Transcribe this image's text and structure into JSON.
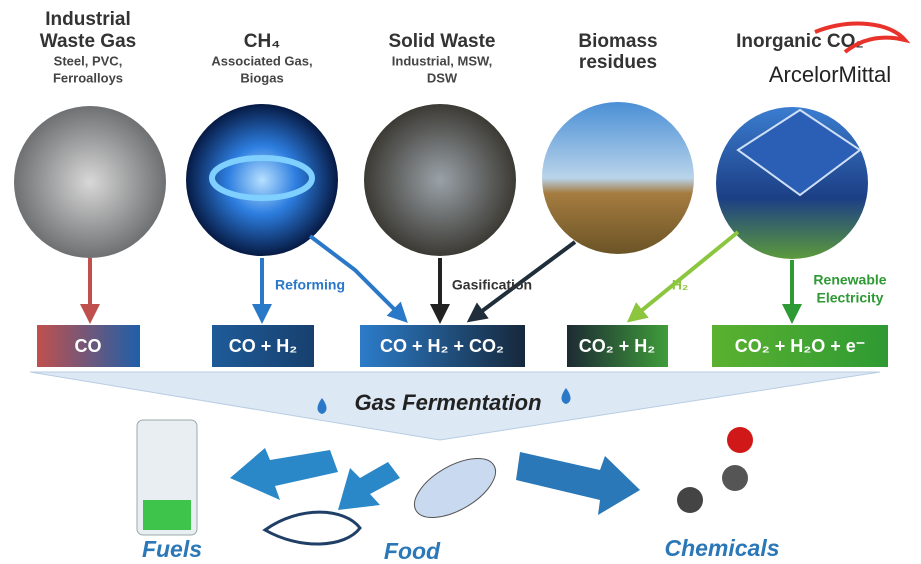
{
  "sources": [
    {
      "title": [
        "Industrial",
        "Waste Gas"
      ],
      "subtitle": [
        "Steel, PVC,",
        "Ferroalloys"
      ]
    },
    {
      "title": [
        "CH₄"
      ],
      "subtitle": [
        "Associated Gas,",
        "Biogas"
      ]
    },
    {
      "title": [
        "Solid Waste"
      ],
      "subtitle": [
        "Industrial, MSW,",
        "DSW"
      ]
    },
    {
      "title": [
        "Biomass",
        "residues"
      ],
      "subtitle": []
    },
    {
      "title": [
        "Inorganic CO₂"
      ],
      "subtitle": [],
      "logo": "ArcelorMittal"
    }
  ],
  "routes": {
    "reforming": "Reforming",
    "gasification": "Gasification",
    "hydrogen": "H₂",
    "electricity": [
      "Renewable",
      "Electricity"
    ]
  },
  "gas_boxes": [
    "CO",
    "CO + H₂",
    "CO + H₂ + CO₂",
    "CO₂ + H₂",
    "CO₂ + H₂O + e⁻"
  ],
  "process": "Gas Fermentation",
  "products": [
    "Fuels",
    "Food",
    "Chemicals"
  ]
}
